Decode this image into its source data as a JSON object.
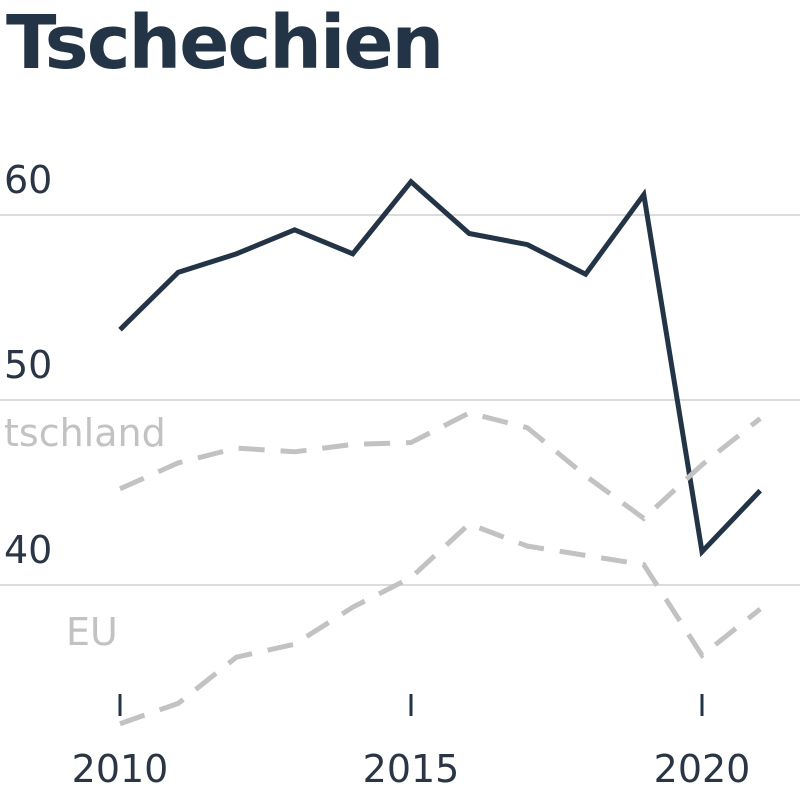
{
  "chart_data": {
    "type": "line",
    "title": "Tschechien",
    "x": [
      2010,
      2011,
      2012,
      2013,
      2014,
      2015,
      2016,
      2017,
      2018,
      2019,
      2020,
      2021
    ],
    "x_ticks": [
      2010,
      2015,
      2020
    ],
    "x_tick_labels": [
      "2010",
      "2015",
      "2020"
    ],
    "y_ticks": [
      40,
      50,
      60
    ],
    "y_tick_labels": [
      "40",
      "50",
      "60"
    ],
    "ylim": [
      33,
      66
    ],
    "grid": true,
    "series": [
      {
        "name": "",
        "color": "#243447",
        "style": "solid",
        "values": [
          53.8,
          56.9,
          57.9,
          59.2,
          57.9,
          61.8,
          59.0,
          58.4,
          56.8,
          61.1,
          41.8,
          45.1
        ]
      },
      {
        "name": "Deutschland",
        "color": "#c2c2c2",
        "style": "dashed",
        "values": [
          45.2,
          46.6,
          47.4,
          47.2,
          47.6,
          47.7,
          49.3,
          48.5,
          45.9,
          43.6,
          46.5,
          49.0
        ]
      },
      {
        "name": "EU",
        "color": "#c2c2c2",
        "style": "dashed",
        "values": [
          32.5,
          33.6,
          36.1,
          36.8,
          38.8,
          40.4,
          43.3,
          42.1,
          41.6,
          41.1,
          36.2,
          38.7
        ]
      }
    ],
    "series_labels": [
      {
        "text": "tschland",
        "series": 1
      },
      {
        "text": "EU",
        "series": 2
      }
    ]
  }
}
